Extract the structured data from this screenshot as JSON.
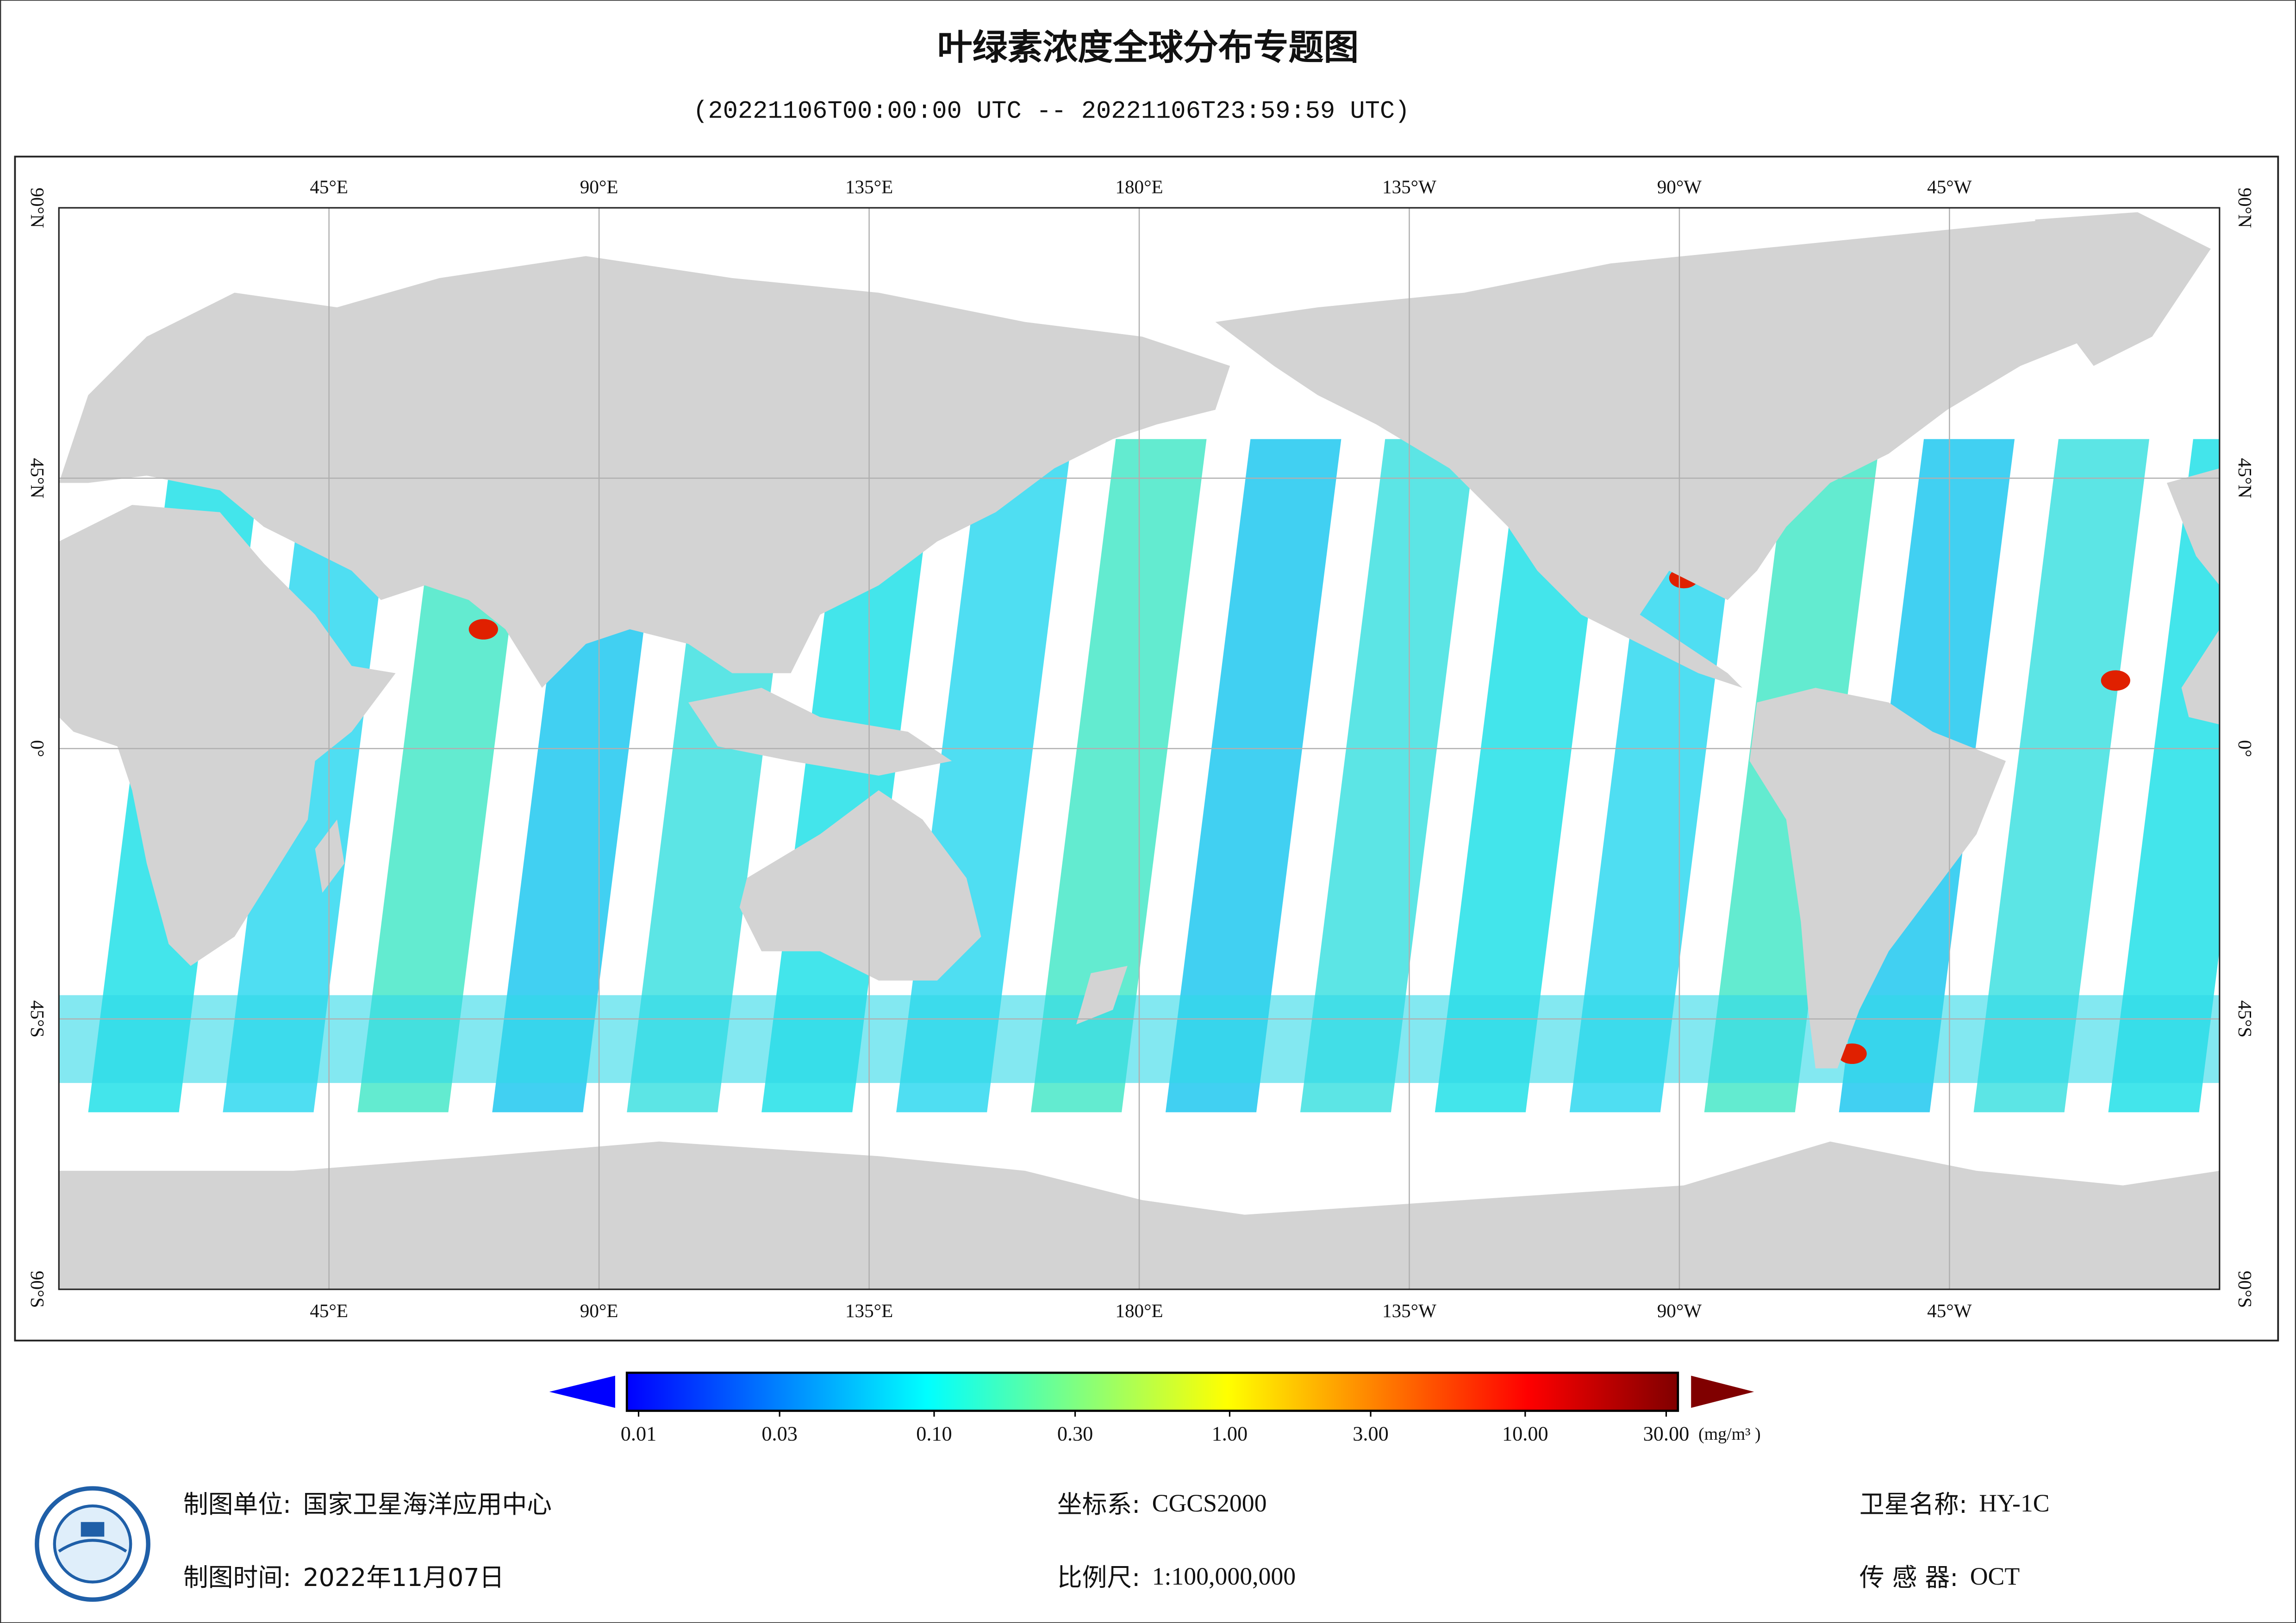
{
  "title": "叶绿素浓度全球分布专题图",
  "subtitle": "(20221106T00:00:00 UTC -- 20221106T23:59:59 UTC)",
  "map": {
    "lon_range": [
      0,
      360
    ],
    "lat_range": [
      -90,
      90
    ],
    "grid": true,
    "lon_ticks": [
      {
        "value": 45,
        "label": "45°E"
      },
      {
        "value": 90,
        "label": "90°E"
      },
      {
        "value": 135,
        "label": "135°E"
      },
      {
        "value": 180,
        "label": "180°E"
      },
      {
        "value": 225,
        "label": "135°W"
      },
      {
        "value": 270,
        "label": "90°W"
      },
      {
        "value": 315,
        "label": "45°W"
      }
    ],
    "lat_ticks": [
      {
        "value": 90,
        "label": "90°N"
      },
      {
        "value": 45,
        "label": "45°N"
      },
      {
        "value": 0,
        "label": "0°"
      },
      {
        "value": -45,
        "label": "45°S"
      },
      {
        "value": -90,
        "label": "90°S"
      }
    ]
  },
  "colorbar": {
    "scale": "log",
    "range": [
      0.01,
      30
    ],
    "unit": "(mg/m³ )",
    "colors": [
      "#0000ff",
      "#0080ff",
      "#00ffff",
      "#80ff80",
      "#ffff00",
      "#ff8000",
      "#ff0000",
      "#800000"
    ],
    "ticks": [
      {
        "value": 0.01,
        "label": "0.01"
      },
      {
        "value": 0.03,
        "label": "0.03"
      },
      {
        "value": 0.1,
        "label": "0.10"
      },
      {
        "value": 0.3,
        "label": "0.30"
      },
      {
        "value": 1,
        "label": "1.00"
      },
      {
        "value": 3,
        "label": "3.00"
      },
      {
        "value": 10,
        "label": "10.00"
      },
      {
        "value": 30,
        "label": "30.00"
      }
    ]
  },
  "footer": [
    {
      "label": "制图单位:",
      "value": "国家卫星海洋应用中心"
    },
    {
      "label": "制图时间:",
      "value": "2022年11月07日"
    },
    {
      "label": "坐标系:",
      "value": "CGCS2000"
    },
    {
      "label": "比例尺:",
      "value": "1:100,000,000"
    },
    {
      "label": "卫星名称:",
      "value": "HY-1C"
    },
    {
      "label": "传 感 器:",
      "value": "OCT"
    }
  ]
}
